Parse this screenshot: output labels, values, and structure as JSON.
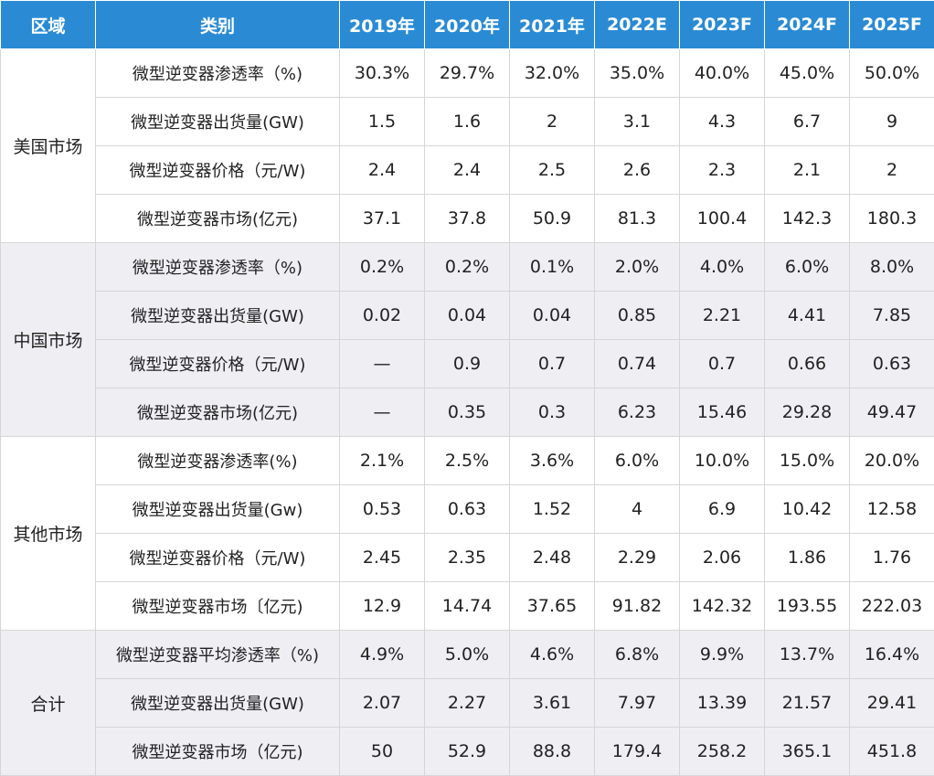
{
  "header": {
    "region": "区域",
    "category": "类别",
    "years": [
      "2019年",
      "2020年",
      "2021年",
      "2022E",
      "2023F",
      "2024F",
      "2025F"
    ]
  },
  "groups": [
    {
      "region": "美国市场",
      "rows": [
        {
          "category": "微型逆变器渗透率（%)",
          "values": [
            "30.3%",
            "29.7%",
            "32.0%",
            "35.0%",
            "40.0%",
            "45.0%",
            "50.0%"
          ]
        },
        {
          "category": "微型逆变器出货量(GW)",
          "values": [
            "1.5",
            "1.6",
            "2",
            "3.1",
            "4.3",
            "6.7",
            "9"
          ]
        },
        {
          "category": "微型逆变器价格（元/W)",
          "values": [
            "2.4",
            "2.4",
            "2.5",
            "2.6",
            "2.3",
            "2.1",
            "2"
          ]
        },
        {
          "category": "微型逆变器市场(亿元)",
          "values": [
            "37.1",
            "37.8",
            "50.9",
            "81.3",
            "100.4",
            "142.3",
            "180.3"
          ]
        }
      ]
    },
    {
      "region": "中国市场",
      "rows": [
        {
          "category": "微型逆变器渗透率（%)",
          "values": [
            "0.2%",
            "0.2%",
            "0.1%",
            "2.0%",
            "4.0%",
            "6.0%",
            "8.0%"
          ]
        },
        {
          "category": "微型逆变器出货量(GW)",
          "values": [
            "0.02",
            "0.04",
            "0.04",
            "0.85",
            "2.21",
            "4.41",
            "7.85"
          ]
        },
        {
          "category": "微型逆变器价格（元/W)",
          "values": [
            "—",
            "0.9",
            "0.7",
            "0.74",
            "0.7",
            "0.66",
            "0.63"
          ]
        },
        {
          "category": "微型逆变器市场(亿元)",
          "values": [
            "—",
            "0.35",
            "0.3",
            "6.23",
            "15.46",
            "29.28",
            "49.47"
          ]
        }
      ]
    },
    {
      "region": "其他市场",
      "rows": [
        {
          "category": "微型逆变器渗透率(%)",
          "values": [
            "2.1%",
            "2.5%",
            "3.6%",
            "6.0%",
            "10.0%",
            "15.0%",
            "20.0%"
          ]
        },
        {
          "category": "微型逆变器出货量(Gw)",
          "values": [
            "0.53",
            "0.63",
            "1.52",
            "4",
            "6.9",
            "10.42",
            "12.58"
          ]
        },
        {
          "category": "微型逆变器价格（元/W)",
          "values": [
            "2.45",
            "2.35",
            "2.48",
            "2.29",
            "2.06",
            "1.86",
            "1.76"
          ]
        },
        {
          "category": "微型逆变器市场〔亿元)",
          "values": [
            "12.9",
            "14.74",
            "37.65",
            "91.82",
            "142.32",
            "193.55",
            "222.03"
          ]
        }
      ]
    },
    {
      "region": "合计",
      "rows": [
        {
          "category": "微型逆变器平均渗透率（%)",
          "values": [
            "4.9%",
            "5.0%",
            "4.6%",
            "6.8%",
            "9.9%",
            "13.7%",
            "16.4%"
          ]
        },
        {
          "category": "微型逆变器出货量(GW)",
          "values": [
            "2.07",
            "2.27",
            "3.61",
            "7.97",
            "13.39",
            "21.57",
            "29.41"
          ]
        },
        {
          "category": "微型逆变器市场（亿元)",
          "values": [
            "50",
            "52.9",
            "88.8",
            "179.4",
            "258.2",
            "365.1",
            "451.8"
          ]
        }
      ]
    }
  ]
}
